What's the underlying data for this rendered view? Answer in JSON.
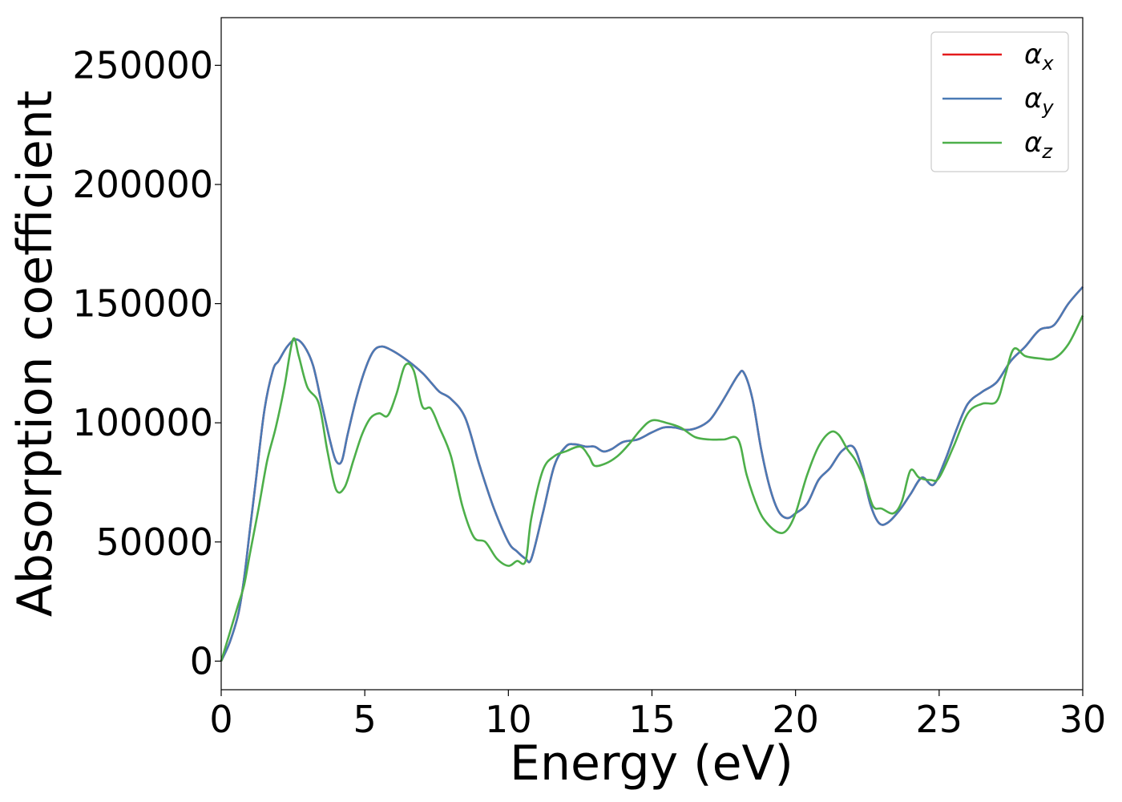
{
  "chart_data": {
    "type": "line",
    "title": "",
    "xlabel": "Energy (eV)",
    "ylabel": "Absorption coefficient",
    "xlim": [
      0,
      30
    ],
    "ylim": [
      -12000,
      270000
    ],
    "xticks": [
      0,
      5,
      10,
      15,
      20,
      25,
      30
    ],
    "yticks": [
      0,
      50000,
      100000,
      150000,
      200000,
      250000
    ],
    "xtick_labels": [
      "0",
      "5",
      "10",
      "15",
      "20",
      "25",
      "30"
    ],
    "ytick_labels": [
      "0",
      "50000",
      "100000",
      "150000",
      "200000",
      "250000"
    ],
    "grid": false,
    "legend_position": "top-right",
    "series": [
      {
        "name": "αx",
        "symbol": "α",
        "subscript": "x",
        "color": "#e41a1c",
        "x": [
          0,
          0.3,
          0.6,
          0.8,
          1.0,
          1.2,
          1.5,
          1.8,
          2.0,
          2.3,
          2.6,
          2.9,
          3.2,
          3.5,
          3.8,
          4.0,
          4.2,
          4.4,
          4.7,
          5.0,
          5.3,
          5.6,
          6.0,
          6.5,
          7.0,
          7.3,
          7.6,
          8.0,
          8.5,
          9.0,
          9.5,
          10.0,
          10.3,
          10.6,
          10.8,
          11.2,
          11.6,
          12.0,
          12.3,
          12.7,
          13.0,
          13.3,
          13.6,
          14.0,
          14.5,
          15.0,
          15.4,
          15.8,
          16.2,
          16.6,
          17.0,
          17.3,
          17.6,
          18.0,
          18.2,
          18.5,
          18.8,
          19.1,
          19.4,
          19.7,
          20.0,
          20.4,
          20.8,
          21.2,
          21.6,
          22.0,
          22.3,
          22.6,
          22.9,
          23.2,
          23.6,
          24.0,
          24.4,
          24.8,
          25.2,
          25.6,
          26.0,
          26.5,
          27.0,
          27.5,
          28.0,
          28.5,
          29.0,
          29.5,
          30.0
        ],
        "values": [
          0,
          8000,
          20000,
          35000,
          55000,
          75000,
          105000,
          122000,
          126000,
          132000,
          135000,
          132000,
          124000,
          108000,
          92000,
          84000,
          84000,
          95000,
          110000,
          122000,
          130000,
          132000,
          130000,
          126000,
          121000,
          117000,
          113000,
          110000,
          102000,
          82000,
          64000,
          50000,
          46000,
          43000,
          43000,
          62000,
          82000,
          90000,
          91000,
          90000,
          90000,
          88000,
          89000,
          92000,
          93000,
          96000,
          98000,
          98000,
          97000,
          98000,
          101000,
          106000,
          112000,
          120000,
          121000,
          110000,
          89000,
          73000,
          63000,
          60000,
          62000,
          66000,
          76000,
          81000,
          88000,
          90000,
          81000,
          66000,
          58000,
          58000,
          63000,
          70000,
          77000,
          74000,
          84000,
          97000,
          108000,
          113000,
          117000,
          126000,
          132000,
          139000,
          141000,
          150000,
          157000
        ]
      },
      {
        "name": "αy",
        "symbol": "α",
        "subscript": "y",
        "color": "#4a7ab5",
        "x": [
          0,
          0.3,
          0.6,
          0.8,
          1.0,
          1.2,
          1.5,
          1.8,
          2.0,
          2.3,
          2.6,
          2.9,
          3.2,
          3.5,
          3.8,
          4.0,
          4.2,
          4.4,
          4.7,
          5.0,
          5.3,
          5.6,
          6.0,
          6.5,
          7.0,
          7.3,
          7.6,
          8.0,
          8.5,
          9.0,
          9.5,
          10.0,
          10.3,
          10.6,
          10.8,
          11.2,
          11.6,
          12.0,
          12.3,
          12.7,
          13.0,
          13.3,
          13.6,
          14.0,
          14.5,
          15.0,
          15.4,
          15.8,
          16.2,
          16.6,
          17.0,
          17.3,
          17.6,
          18.0,
          18.2,
          18.5,
          18.8,
          19.1,
          19.4,
          19.7,
          20.0,
          20.4,
          20.8,
          21.2,
          21.6,
          22.0,
          22.3,
          22.6,
          22.9,
          23.2,
          23.6,
          24.0,
          24.4,
          24.8,
          25.2,
          25.6,
          26.0,
          26.5,
          27.0,
          27.5,
          28.0,
          28.5,
          29.0,
          29.5,
          30.0
        ],
        "values": [
          0,
          8000,
          20000,
          35000,
          55000,
          75000,
          105000,
          122000,
          126000,
          132000,
          135000,
          132000,
          124000,
          108000,
          92000,
          84000,
          84000,
          95000,
          110000,
          122000,
          130000,
          132000,
          130000,
          126000,
          121000,
          117000,
          113000,
          110000,
          102000,
          82000,
          64000,
          50000,
          46000,
          43000,
          43000,
          62000,
          82000,
          90000,
          91000,
          90000,
          90000,
          88000,
          89000,
          92000,
          93000,
          96000,
          98000,
          98000,
          97000,
          98000,
          101000,
          106000,
          112000,
          120000,
          121000,
          110000,
          89000,
          73000,
          63000,
          60000,
          62000,
          66000,
          76000,
          81000,
          88000,
          90000,
          81000,
          66000,
          58000,
          58000,
          63000,
          70000,
          77000,
          74000,
          84000,
          97000,
          108000,
          113000,
          117000,
          126000,
          132000,
          139000,
          141000,
          150000,
          157000
        ]
      },
      {
        "name": "αz",
        "symbol": "α",
        "subscript": "z",
        "color": "#4daf4a",
        "x": [
          0,
          0.3,
          0.6,
          0.8,
          1.0,
          1.3,
          1.6,
          1.9,
          2.2,
          2.5,
          2.7,
          3.0,
          3.4,
          3.7,
          4.0,
          4.3,
          4.6,
          4.9,
          5.2,
          5.5,
          5.8,
          6.1,
          6.4,
          6.7,
          7.0,
          7.3,
          7.6,
          8.0,
          8.4,
          8.8,
          9.2,
          9.6,
          10.0,
          10.3,
          10.6,
          10.8,
          11.2,
          11.6,
          12.0,
          12.5,
          12.8,
          13.0,
          13.4,
          13.8,
          14.2,
          14.6,
          15.0,
          15.5,
          16.0,
          16.5,
          17.0,
          17.5,
          18.0,
          18.3,
          18.7,
          19.0,
          19.4,
          19.7,
          20.0,
          20.4,
          20.8,
          21.2,
          21.5,
          21.8,
          22.1,
          22.4,
          22.7,
          23.0,
          23.4,
          23.7,
          24.0,
          24.3,
          24.7,
          25.0,
          25.5,
          26.0,
          26.5,
          27.0,
          27.3,
          27.6,
          28.0,
          28.5,
          29.0,
          29.5,
          30.0
        ],
        "values": [
          0,
          12000,
          24000,
          32000,
          45000,
          64000,
          84000,
          98000,
          115000,
          135000,
          128000,
          115000,
          108000,
          88000,
          72000,
          73000,
          84000,
          95000,
          102000,
          104000,
          103000,
          112000,
          124000,
          122000,
          107000,
          106000,
          98000,
          86000,
          65000,
          52000,
          50000,
          43000,
          40000,
          42000,
          42000,
          60000,
          80000,
          86000,
          88000,
          90000,
          86000,
          82000,
          83000,
          86000,
          91000,
          97000,
          101000,
          100000,
          98000,
          94000,
          93000,
          93000,
          93000,
          78000,
          64000,
          58000,
          54000,
          55000,
          62000,
          78000,
          90000,
          96000,
          95000,
          89000,
          84000,
          76000,
          65000,
          64000,
          62000,
          67000,
          80000,
          77000,
          76000,
          77000,
          90000,
          104000,
          108000,
          109000,
          120000,
          131000,
          128000,
          127000,
          127000,
          133000,
          145000
        ]
      }
    ]
  }
}
